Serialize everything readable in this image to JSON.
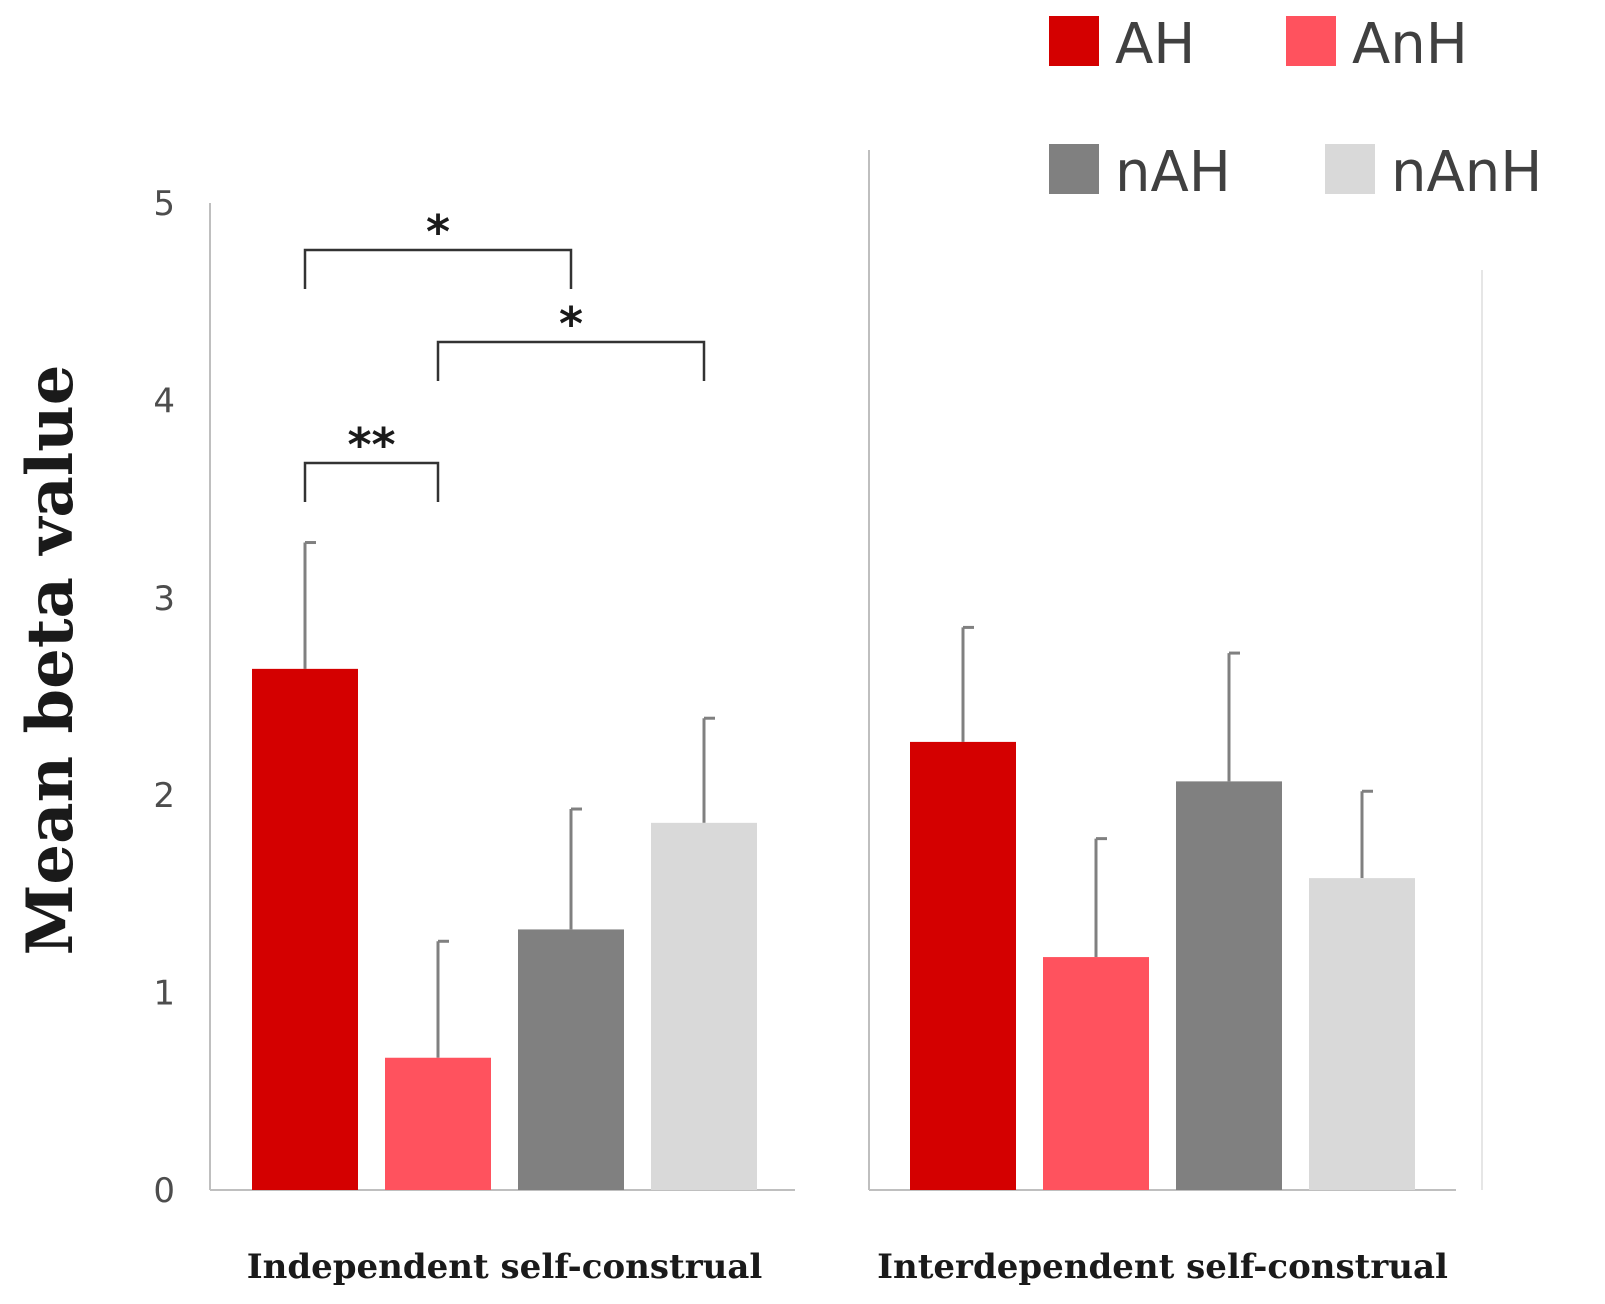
{
  "chart_data": {
    "type": "bar",
    "title": "",
    "xlabel": "",
    "ylabel": "Mean beta value",
    "ylim": [
      0,
      5
    ],
    "yticks": [
      0,
      1,
      2,
      3,
      4,
      5
    ],
    "grid": false,
    "legend_position": "top-right",
    "categories": [
      "Independent self-construal",
      "Interdependent self-construal"
    ],
    "series": [
      {
        "name": "AH",
        "color": "#d40000",
        "values": [
          2.64,
          2.27
        ],
        "errors": [
          0.64,
          0.58
        ]
      },
      {
        "name": "AnH",
        "color": "#ff525e",
        "values": [
          0.67,
          1.18
        ],
        "errors": [
          0.59,
          0.6
        ]
      },
      {
        "name": "nAH",
        "color": "#808080",
        "values": [
          1.32,
          2.07
        ],
        "errors": [
          0.61,
          0.65
        ]
      },
      {
        "name": "nAnH",
        "color": "#d9d9d9",
        "values": [
          1.86,
          1.58
        ],
        "errors": [
          0.53,
          0.44
        ]
      }
    ],
    "significance": [
      {
        "group": 0,
        "from": "AH",
        "to": "AnH",
        "label": "**"
      },
      {
        "group": 0,
        "from": "AH",
        "to": "nAH",
        "label": "*"
      },
      {
        "group": 0,
        "from": "AnH",
        "to": "nAnH",
        "label": "*"
      }
    ]
  }
}
